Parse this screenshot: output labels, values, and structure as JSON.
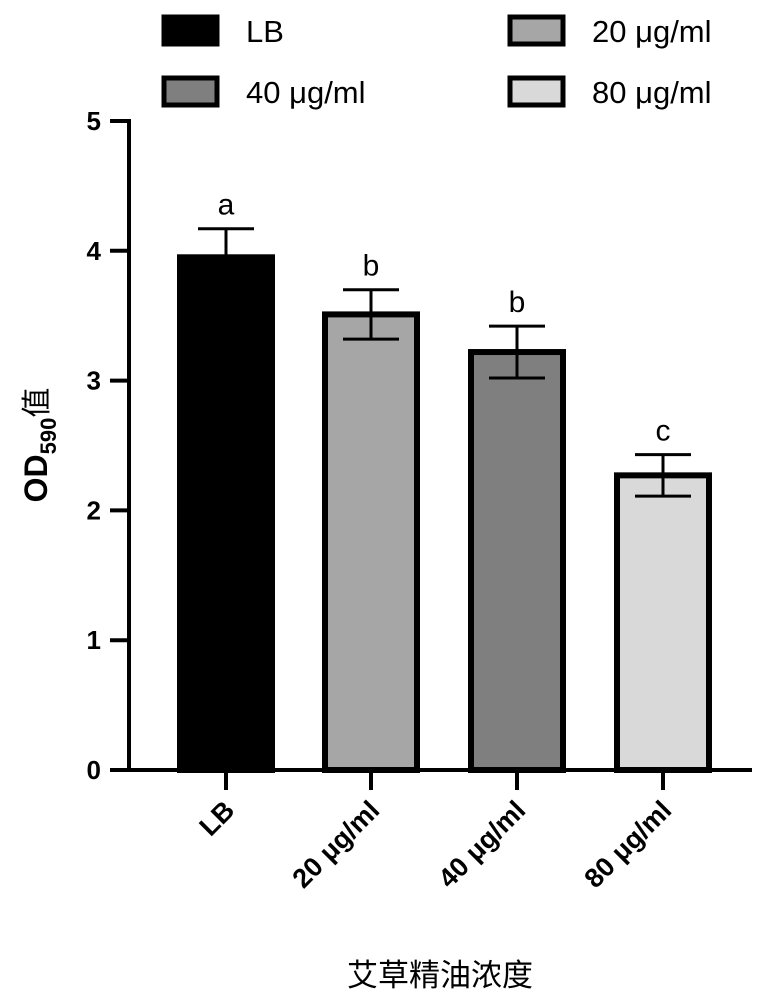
{
  "chart_data": {
    "type": "bar",
    "categories": [
      "LB",
      "20 μg/ml",
      "40 μg/ml",
      "80 μg/ml"
    ],
    "values": [
      3.95,
      3.51,
      3.22,
      2.27
    ],
    "errors": [
      0.22,
      0.19,
      0.2,
      0.16
    ],
    "significance": [
      "a",
      "b",
      "b",
      "c"
    ],
    "colors": [
      "#000000",
      "#a6a6a6",
      "#7f7f7f",
      "#d9d9d9"
    ],
    "ylabel": {
      "main": "OD",
      "subscript": "590",
      "suffix": "值"
    },
    "xlabel": "艾草精油浓度",
    "ylim": [
      0,
      5
    ],
    "yticks": [
      0,
      1,
      2,
      3,
      4,
      5
    ],
    "grid": false,
    "legend": {
      "position": "top",
      "entries": [
        "LB",
        "20 μg/ml",
        "40 μg/ml",
        "80 μg/ml"
      ]
    }
  }
}
